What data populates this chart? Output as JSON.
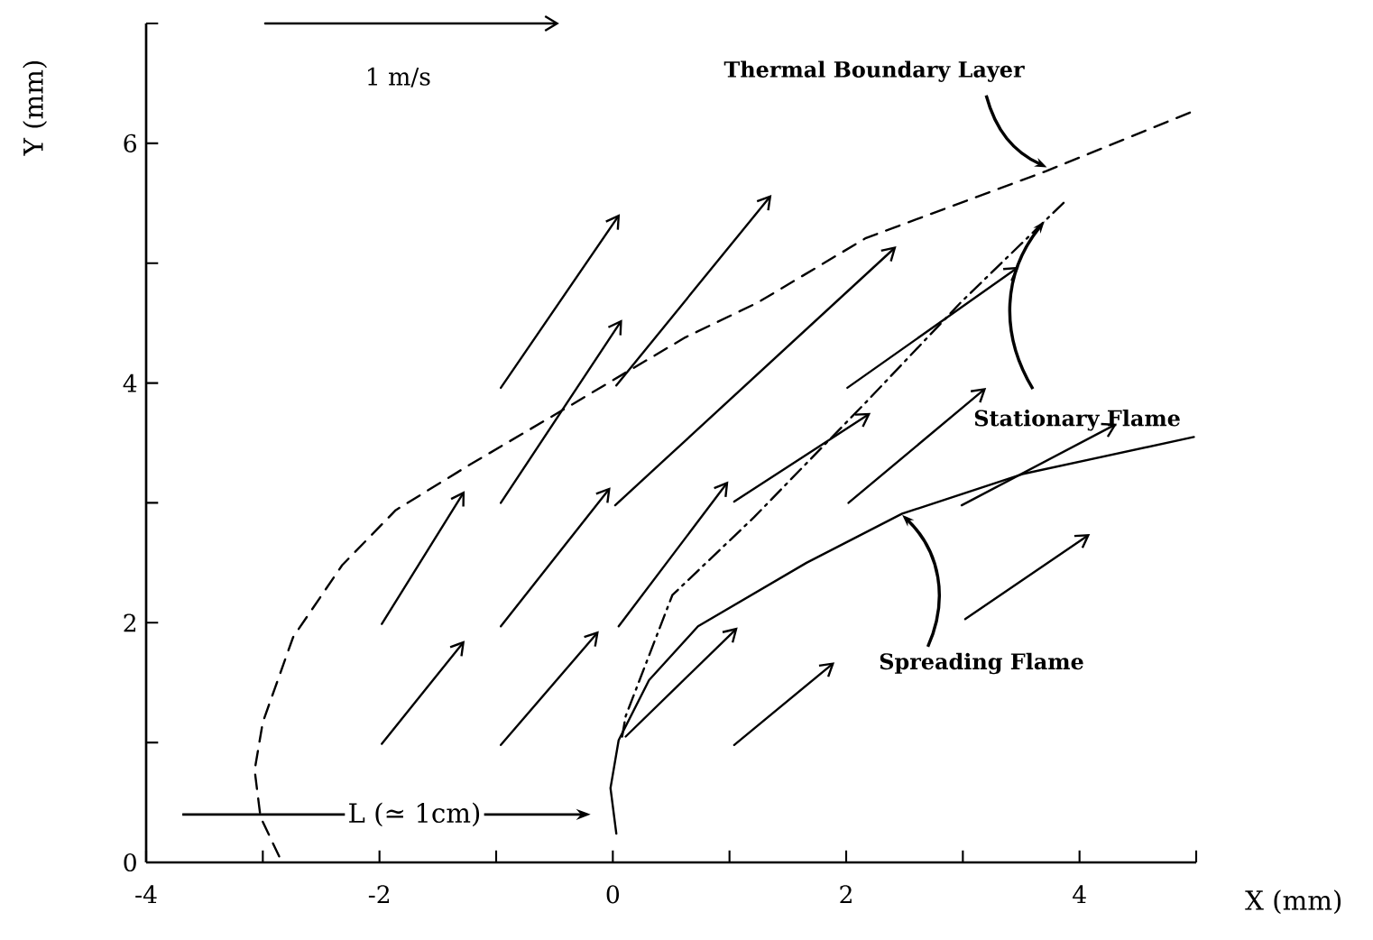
{
  "chart_data": {
    "type": "line",
    "xlabel": "X (mm)",
    "ylabel": "Y (mm)",
    "xlim": [
      -4,
      5
    ],
    "ylim": [
      0,
      7
    ],
    "xticks": [
      -4,
      {
        "value": -3,
        "label": null
      },
      -2,
      {
        "value": -1,
        "label": null
      },
      0,
      {
        "value": 1,
        "label": null
      },
      2,
      {
        "value": 3,
        "label": null
      },
      4,
      {
        "value": 5,
        "label": null
      }
    ],
    "yticks": [
      0,
      {
        "value": 1,
        "label": null
      },
      2,
      {
        "value": 3,
        "label": null
      },
      4,
      {
        "value": 5,
        "label": null
      },
      6,
      {
        "value": 7,
        "label": null
      }
    ],
    "annotations": [
      {
        "text": "Thermal Boundary Layer",
        "x": 3.72,
        "y": 5.8
      },
      {
        "text": "Stationary Flame",
        "x": 3.7,
        "y": 5.35
      },
      {
        "text": "Spreading Flame",
        "x": 2.48,
        "y": 2.9
      },
      "L (≃ 1cm)",
      "1 m/s"
    ],
    "series": [
      {
        "color": "#000000",
        "line_style": "dashed",
        "x": [
          -2.86,
          -3.02,
          -3.07,
          -3.0,
          -2.74,
          -2.32,
          -1.86,
          -1.24,
          -0.42,
          0.15,
          0.62,
          1.24,
          2.17,
          3.72,
          4.98
        ],
        "values": [
          0.05,
          0.38,
          0.77,
          1.17,
          1.88,
          2.48,
          2.94,
          3.31,
          3.78,
          4.11,
          4.38,
          4.67,
          5.21,
          5.77,
          6.27
        ]
      },
      {
        "color": "#000000",
        "line_style": "dashdot",
        "x": [
          0.08,
          0.11,
          0.51,
          1.21,
          2.17,
          2.99,
          3.87
        ],
        "values": [
          1.05,
          1.22,
          2.23,
          2.88,
          3.84,
          4.68,
          5.51
        ]
      },
      {
        "color": "#000000",
        "x": [
          0.03,
          -0.02,
          0.05,
          0.31,
          0.73,
          1.66,
          2.48,
          3.51,
          4.98
        ],
        "values": [
          0.24,
          0.62,
          1.02,
          1.52,
          1.97,
          2.5,
          2.91,
          3.24,
          3.55
        ]
      }
    ]
  }
}
